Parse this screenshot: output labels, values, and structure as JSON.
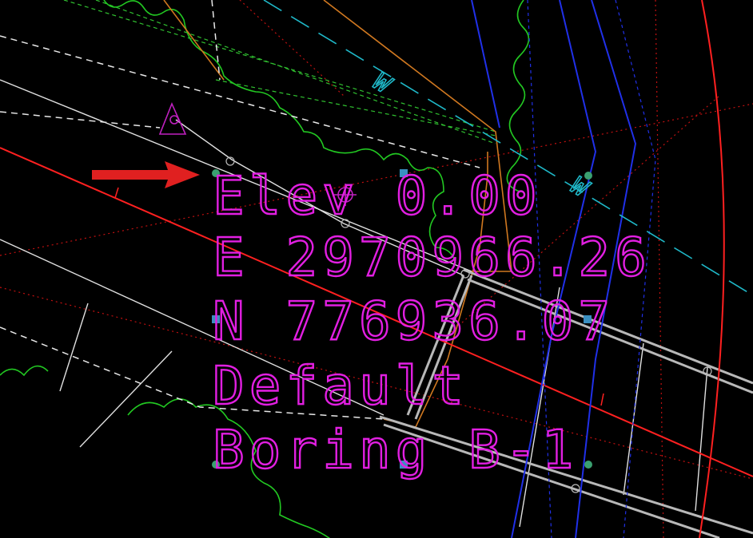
{
  "annotation": {
    "lines": [
      "Elev 0.00",
      "E 2970966.26",
      "N 776936.07",
      "Default",
      "Boring B-1"
    ]
  },
  "linetype_labels": [
    "W",
    "W"
  ]
}
